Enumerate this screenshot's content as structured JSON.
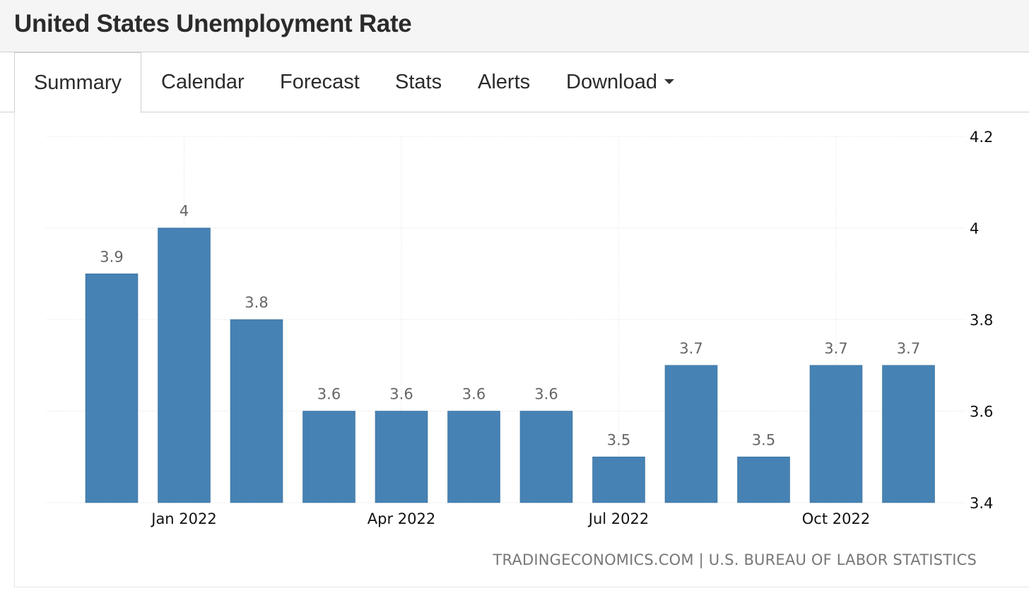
{
  "header": {
    "title": "United States Unemployment Rate"
  },
  "tabs": [
    {
      "label": "Summary",
      "active": true
    },
    {
      "label": "Calendar"
    },
    {
      "label": "Forecast"
    },
    {
      "label": "Stats"
    },
    {
      "label": "Alerts"
    },
    {
      "label": "Download",
      "icon": "caret-down-icon"
    }
  ],
  "source": "TRADINGECONOMICS.COM | U.S. BUREAU OF LABOR STATISTICS",
  "colors": {
    "bar": "#4682b4",
    "grid": "#dddddd",
    "label": "#666666"
  },
  "chart_data": {
    "type": "bar",
    "categories": [
      "2021-12",
      "2022-01",
      "2022-02",
      "2022-03",
      "2022-04",
      "2022-05",
      "2022-06",
      "2022-07",
      "2022-08",
      "2022-09",
      "2022-10",
      "2022-11"
    ],
    "values": [
      3.9,
      4.0,
      3.8,
      3.6,
      3.6,
      3.6,
      3.6,
      3.5,
      3.7,
      3.5,
      3.7,
      3.7
    ],
    "data_labels": [
      "3.9",
      "4",
      "3.8",
      "3.6",
      "3.6",
      "3.6",
      "3.6",
      "3.5",
      "3.7",
      "3.5",
      "3.7",
      "3.7"
    ],
    "x_ticks": [
      {
        "category": "2022-01",
        "label": "Jan 2022"
      },
      {
        "category": "2022-04",
        "label": "Apr 2022"
      },
      {
        "category": "2022-07",
        "label": "Jul 2022"
      },
      {
        "category": "2022-10",
        "label": "Oct 2022"
      }
    ],
    "y_ticks": [
      3.4,
      3.6,
      3.8,
      4,
      4.2
    ],
    "ylim": [
      3.4,
      4.2
    ],
    "y_axis_side": "right",
    "grid": true,
    "legend": false
  }
}
